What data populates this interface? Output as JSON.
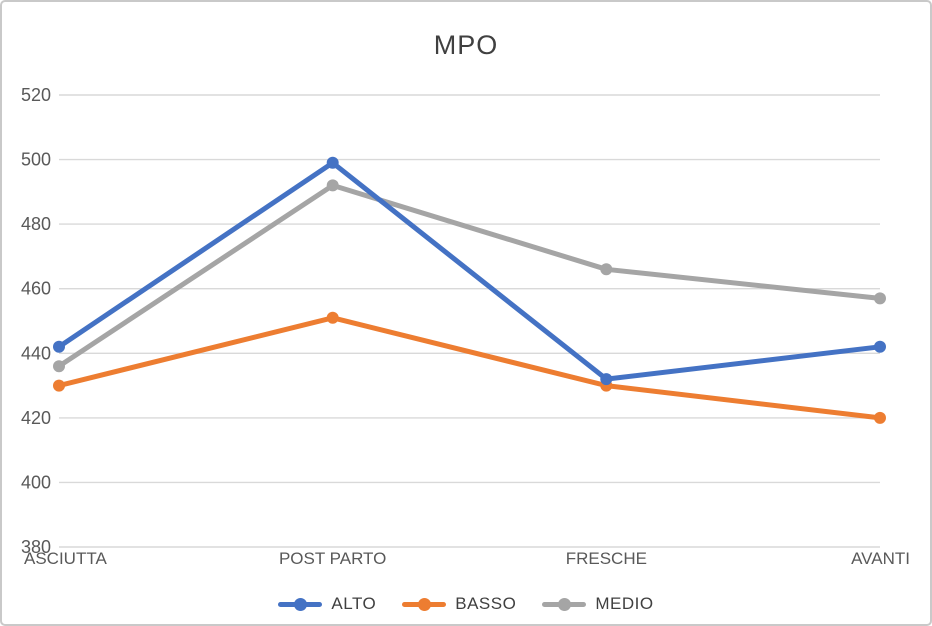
{
  "chart_data": {
    "type": "line",
    "title": "MPO",
    "categories": [
      "ASCIUTTA",
      "POST PARTO",
      "FRESCHE",
      "AVANTI"
    ],
    "series": [
      {
        "name": "ALTO",
        "color": "#4472C4",
        "values": [
          442,
          499,
          432,
          442
        ]
      },
      {
        "name": "BASSO",
        "color": "#ED7D31",
        "values": [
          430,
          451,
          430,
          420
        ]
      },
      {
        "name": "MEDIO",
        "color": "#A5A5A5",
        "values": [
          436,
          492,
          466,
          457
        ]
      }
    ],
    "ylim": [
      380,
      520
    ],
    "ytick_step": 20,
    "yticks": [
      380,
      400,
      420,
      440,
      460,
      480,
      500,
      520
    ],
    "grid": "horizontal",
    "legend_position": "bottom",
    "axis_text_color": "#595959",
    "gridline_color": "#d9d9d9",
    "background_color": "#ffffff",
    "border_color": "#c9c9c9"
  }
}
